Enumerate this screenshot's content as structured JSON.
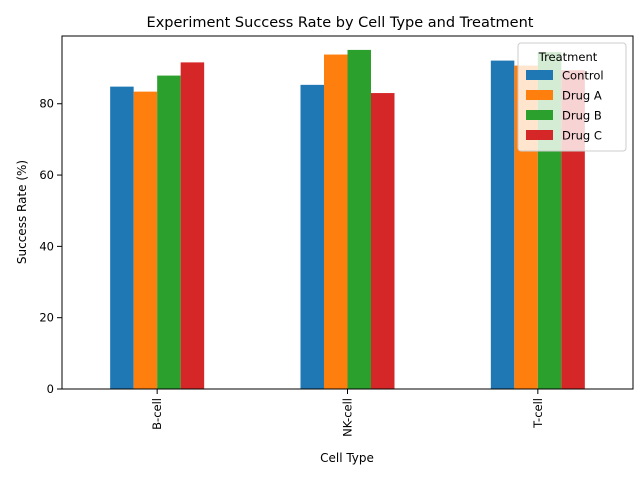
{
  "chart_data": {
    "type": "bar",
    "title": "Experiment Success Rate by Cell Type and Treatment",
    "xlabel": "Cell Type",
    "ylabel": "Success Rate (%)",
    "categories": [
      "B-cell",
      "NK-cell",
      "T-cell"
    ],
    "ylim": [
      0,
      99
    ],
    "yticks": [
      0,
      20,
      40,
      60,
      80
    ],
    "grid": false,
    "legend": {
      "title": "Treatment",
      "placement": "top-right"
    },
    "series": [
      {
        "name": "Control",
        "color": "#1f77b4",
        "values": [
          84.8,
          85.3,
          92.1
        ]
      },
      {
        "name": "Drug A",
        "color": "#ff7f0e",
        "values": [
          83.4,
          93.8,
          90.7
        ]
      },
      {
        "name": "Drug B",
        "color": "#2ca02c",
        "values": [
          87.9,
          95.1,
          94.5
        ]
      },
      {
        "name": "Drug C",
        "color": "#d62728",
        "values": [
          91.6,
          83.0,
          89.4
        ]
      }
    ]
  }
}
